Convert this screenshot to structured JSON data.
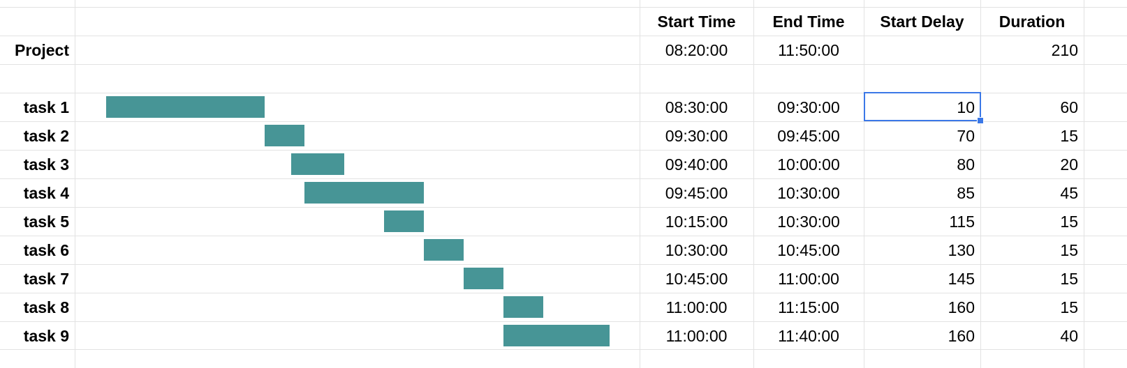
{
  "headers": {
    "start_time": "Start Time",
    "end_time": "End Time",
    "start_delay": "Start Delay",
    "duration": "Duration"
  },
  "project": {
    "label": "Project",
    "start_time": "08:20:00",
    "end_time": "11:50:00",
    "duration": "210"
  },
  "tasks": [
    {
      "label": "task 1",
      "start_time": "08:30:00",
      "end_time": "09:30:00",
      "start_delay": "10",
      "duration": "60"
    },
    {
      "label": "task 2",
      "start_time": "09:30:00",
      "end_time": "09:45:00",
      "start_delay": "70",
      "duration": "15"
    },
    {
      "label": "task 3",
      "start_time": "09:40:00",
      "end_time": "10:00:00",
      "start_delay": "80",
      "duration": "20"
    },
    {
      "label": "task 4",
      "start_time": "09:45:00",
      "end_time": "10:30:00",
      "start_delay": "85",
      "duration": "45"
    },
    {
      "label": "task 5",
      "start_time": "10:15:00",
      "end_time": "10:30:00",
      "start_delay": "115",
      "duration": "15"
    },
    {
      "label": "task 6",
      "start_time": "10:30:00",
      "end_time": "10:45:00",
      "start_delay": "130",
      "duration": "15"
    },
    {
      "label": "task 7",
      "start_time": "10:45:00",
      "end_time": "11:00:00",
      "start_delay": "145",
      "duration": "15"
    },
    {
      "label": "task 8",
      "start_time": "11:00:00",
      "end_time": "11:15:00",
      "start_delay": "160",
      "duration": "15"
    },
    {
      "label": "task 9",
      "start_time": "11:00:00",
      "end_time": "11:40:00",
      "start_delay": "160",
      "duration": "40"
    }
  ],
  "bar_color": "#479596",
  "selection_color": "#3b78e7",
  "selected_cell": "tasks.0.start_delay"
}
